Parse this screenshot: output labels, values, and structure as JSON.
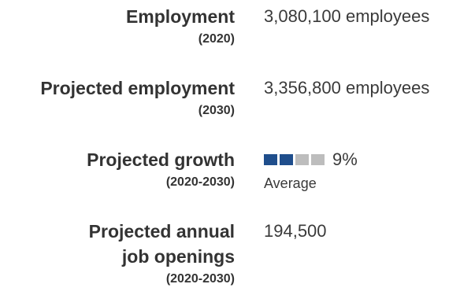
{
  "employment": {
    "label": "Employment",
    "period": "(2020)",
    "value": "3,080,100 employees"
  },
  "projected_employment": {
    "label": "Projected employment",
    "period": "(2030)",
    "value": "3,356,800 employees"
  },
  "projected_growth": {
    "label": "Projected growth",
    "period": "(2020-2030)",
    "percent": "9%",
    "rating": "Average",
    "meter_filled": 2,
    "meter_total": 4,
    "colors": {
      "filled": "#1f4e8c",
      "empty": "#bdbdbd"
    }
  },
  "annual_openings": {
    "label_line1": "Projected annual",
    "label_line2": "job openings",
    "period": "(2020-2030)",
    "value": "194,500"
  }
}
